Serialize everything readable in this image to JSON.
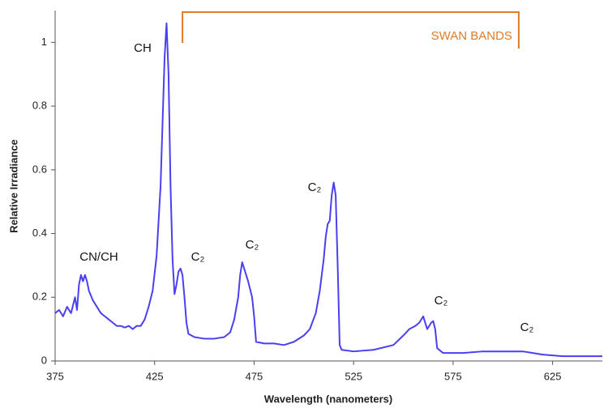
{
  "chart_data": {
    "type": "line",
    "x_label": "Wavelength (nanometers)",
    "y_label": "Relative Irradiance",
    "color": "#4b3ff0",
    "xlim": [
      375,
      650
    ],
    "ylim": [
      0,
      1.1
    ],
    "xticks": [
      375,
      425,
      475,
      525,
      575,
      625
    ],
    "yticks": [
      0,
      0.2,
      0.4,
      0.6,
      0.8,
      1
    ],
    "grid": false,
    "x": [
      375,
      377,
      379,
      381,
      383,
      385,
      386,
      387,
      388,
      389,
      390,
      391,
      392,
      394,
      396,
      398,
      400,
      402,
      404,
      406,
      408,
      410,
      412,
      414,
      416,
      418,
      420,
      422,
      424,
      426,
      428,
      429,
      430,
      431,
      432,
      433,
      434,
      435,
      436,
      437,
      438,
      439,
      440,
      441,
      442,
      445,
      450,
      455,
      460,
      463,
      465,
      467,
      468,
      469,
      470,
      472,
      474,
      475,
      476,
      480,
      485,
      490,
      495,
      500,
      503,
      506,
      508,
      510,
      511,
      512,
      513,
      514,
      515,
      516,
      517,
      518,
      519,
      525,
      535,
      545,
      550,
      553,
      556,
      558,
      560,
      562,
      564,
      565,
      566,
      567,
      570,
      580,
      590,
      600,
      610,
      615,
      620,
      630,
      640,
      650
    ],
    "values": [
      0.15,
      0.16,
      0.14,
      0.17,
      0.15,
      0.2,
      0.16,
      0.24,
      0.27,
      0.25,
      0.27,
      0.25,
      0.22,
      0.19,
      0.17,
      0.15,
      0.14,
      0.13,
      0.12,
      0.11,
      0.11,
      0.105,
      0.11,
      0.1,
      0.11,
      0.11,
      0.13,
      0.17,
      0.22,
      0.33,
      0.55,
      0.75,
      0.95,
      1.06,
      0.9,
      0.55,
      0.32,
      0.21,
      0.24,
      0.28,
      0.29,
      0.27,
      0.2,
      0.12,
      0.085,
      0.075,
      0.07,
      0.07,
      0.075,
      0.09,
      0.13,
      0.2,
      0.27,
      0.31,
      0.29,
      0.25,
      0.2,
      0.14,
      0.06,
      0.055,
      0.055,
      0.05,
      0.06,
      0.08,
      0.1,
      0.15,
      0.22,
      0.32,
      0.39,
      0.43,
      0.44,
      0.52,
      0.56,
      0.52,
      0.3,
      0.05,
      0.035,
      0.03,
      0.035,
      0.05,
      0.08,
      0.1,
      0.11,
      0.12,
      0.14,
      0.1,
      0.12,
      0.125,
      0.1,
      0.04,
      0.025,
      0.025,
      0.03,
      0.03,
      0.03,
      0.025,
      0.02,
      0.015,
      0.015,
      0.015
    ],
    "annotations": [
      "CH",
      "CN/CH",
      "C₂",
      "C₂",
      "C₂",
      "C₂",
      "C₂"
    ],
    "bracket": {
      "text": "SWAN BANDS",
      "color": "#e07b28",
      "x_range": [
        439,
        608
      ]
    }
  }
}
